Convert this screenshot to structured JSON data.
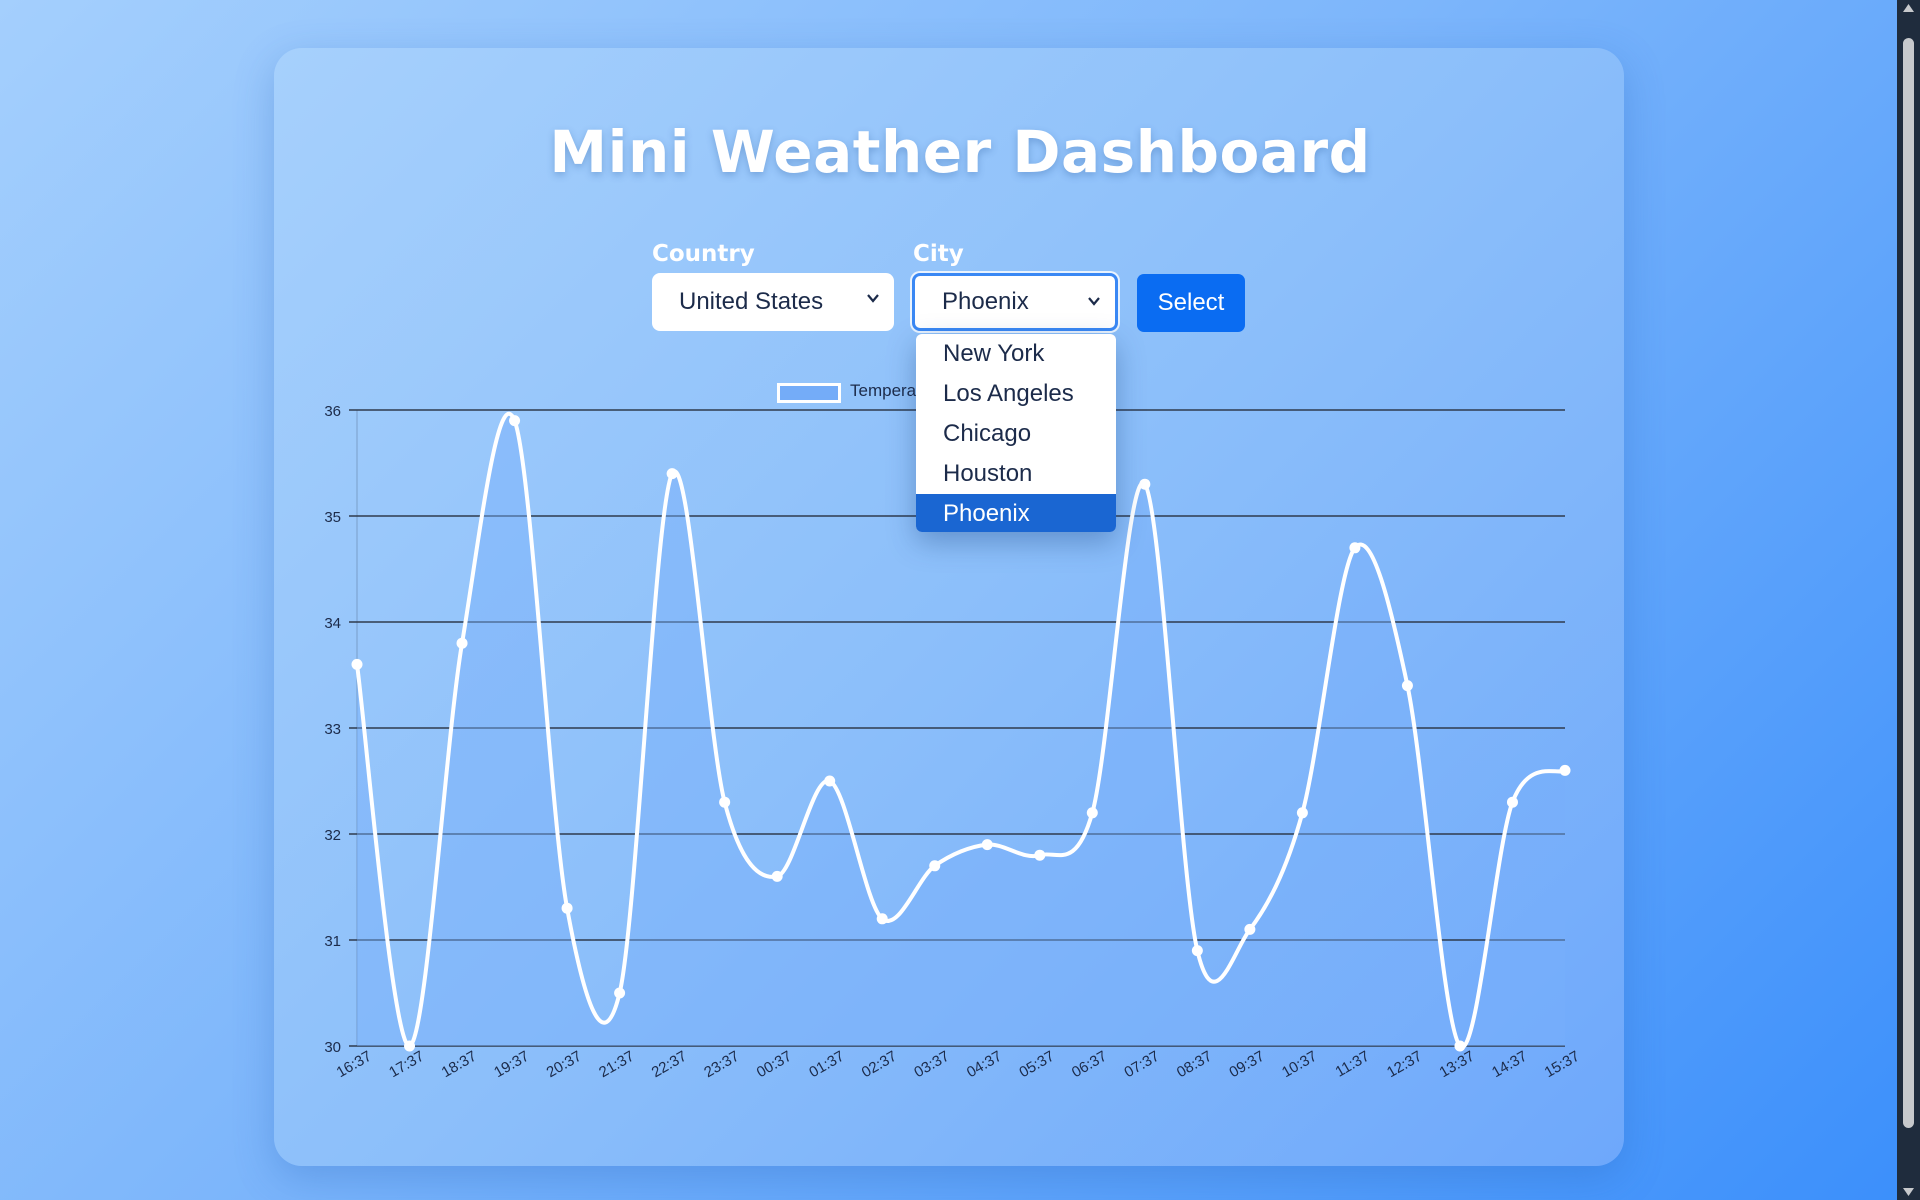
{
  "title": "Mini Weather Dashboard",
  "country": {
    "label": "Country",
    "selected": "United States"
  },
  "city": {
    "label": "City",
    "selected": "Phoenix",
    "options": [
      "New York",
      "Los Angeles",
      "Chicago",
      "Houston",
      "Phoenix"
    ]
  },
  "select_button": "Select",
  "icons": {
    "chevron": "chevron-down-icon",
    "scroll_up": "scroll-up-arrow-icon",
    "scroll_down": "scroll-down-arrow-icon"
  },
  "colors": {
    "primary_button": "#0a6cf2",
    "selected_option": "#1a66d2",
    "line": "#ffffff",
    "area_fill": "#7fb3fa"
  },
  "chart_data": {
    "type": "line",
    "legend": {
      "label": "Temperature (°C)",
      "placement": "top"
    },
    "x": [
      "16:37",
      "17:37",
      "18:37",
      "19:37",
      "20:37",
      "21:37",
      "22:37",
      "23:37",
      "00:37",
      "01:37",
      "02:37",
      "03:37",
      "04:37",
      "05:37",
      "06:37",
      "07:37",
      "08:37",
      "09:37",
      "10:37",
      "11:37",
      "12:37",
      "13:37",
      "14:37",
      "15:37"
    ],
    "series": [
      {
        "name": "Temperature (°C)",
        "values": [
          33.6,
          30.0,
          33.8,
          35.9,
          31.3,
          30.5,
          35.4,
          32.3,
          31.6,
          32.5,
          31.2,
          31.7,
          31.9,
          31.8,
          32.2,
          35.3,
          30.9,
          31.1,
          32.2,
          34.7,
          33.4,
          30.0,
          32.3,
          32.6
        ]
      }
    ],
    "ylim": [
      30,
      36
    ],
    "yticks": [
      30,
      31,
      32,
      33,
      34,
      35,
      36
    ],
    "grid": true
  }
}
